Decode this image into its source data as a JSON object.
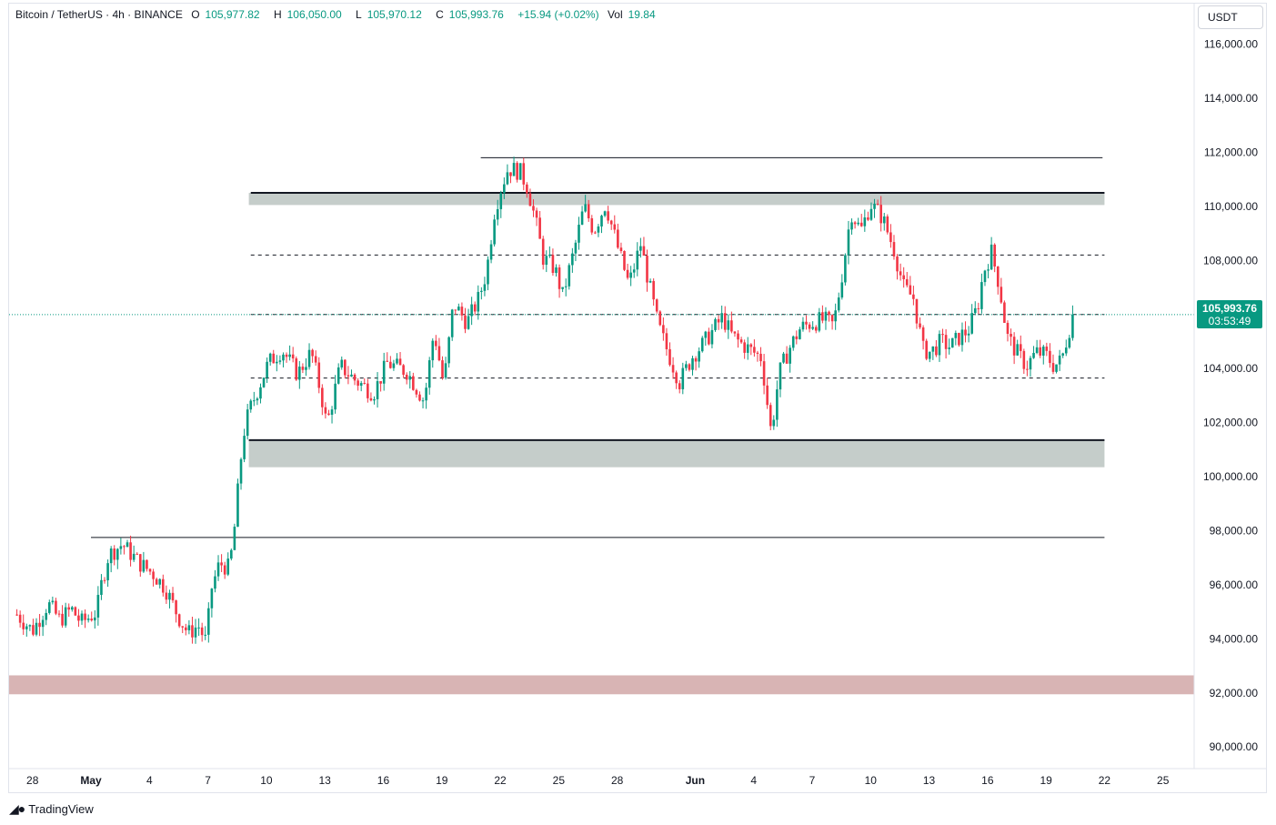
{
  "header": {
    "symbol": "Bitcoin / TetherUS · 4h · BINANCE",
    "o_label": "O",
    "o_value": "105,977.82",
    "h_label": "H",
    "h_value": "106,050.00",
    "l_label": "L",
    "l_value": "105,970.12",
    "c_label": "C",
    "c_value": "105,993.76",
    "change": "+15.94 (+0.02%)",
    "vol_label": "Vol",
    "vol_value": "19.84"
  },
  "currency": "USDT",
  "price_tag": {
    "price": "105,993.76",
    "countdown": "03:53:49"
  },
  "watermark": "TradingView",
  "colors": {
    "up": "#089981",
    "down": "#f23645",
    "zone_grey": "#c5cdca",
    "zone_red": "#d8b4b4"
  },
  "chart_data": {
    "type": "candlestick",
    "symbol": "BTCUSDT",
    "timeframe": "4h",
    "y_ticks": [
      "116,000.00",
      "114,000.00",
      "112,000.00",
      "110,000.00",
      "108,000.00",
      "106,000.00",
      "104,000.00",
      "102,000.00",
      "100,000.00",
      "98,000.00",
      "96,000.00",
      "94,000.00",
      "92,000.00",
      "90,000.00"
    ],
    "y_range": [
      89200,
      117500
    ],
    "x_ticks": [
      "28",
      "May",
      "4",
      "7",
      "10",
      "13",
      "16",
      "19",
      "22",
      "25",
      "28",
      "Jun",
      "4",
      "7",
      "10",
      "13",
      "16",
      "19",
      "22",
      "25"
    ],
    "x_tick_days": [
      -3,
      0,
      3,
      6,
      9,
      12,
      15,
      18,
      21,
      24,
      27,
      31,
      34,
      37,
      40,
      43,
      46,
      49,
      52,
      55
    ],
    "x_tick_bold": [
      "May",
      "Jun"
    ],
    "day_range": [
      -4.2,
      56.6
    ],
    "last_price": 105993.76,
    "path_points": [
      [
        -3.8,
        94900
      ],
      [
        -3.0,
        94300
      ],
      [
        -2.2,
        95300
      ],
      [
        -1.6,
        94700
      ],
      [
        -1.0,
        95100
      ],
      [
        -0.5,
        94600
      ],
      [
        0.3,
        95000
      ],
      [
        0.5,
        95900
      ],
      [
        0.9,
        97100
      ],
      [
        1.6,
        97500
      ],
      [
        2.5,
        96800
      ],
      [
        3.2,
        96400
      ],
      [
        3.8,
        95900
      ],
      [
        4.5,
        94800
      ],
      [
        5.0,
        94200
      ],
      [
        5.5,
        94500
      ],
      [
        5.9,
        93900
      ],
      [
        6.2,
        95900
      ],
      [
        6.6,
        96800
      ],
      [
        7.1,
        96600
      ],
      [
        7.35,
        98000
      ],
      [
        7.8,
        101500
      ],
      [
        8.1,
        102400
      ],
      [
        8.6,
        103300
      ],
      [
        9.1,
        104200
      ],
      [
        9.8,
        104700
      ],
      [
        10.6,
        103800
      ],
      [
        11.3,
        104600
      ],
      [
        11.8,
        103100
      ],
      [
        12.1,
        101900
      ],
      [
        12.8,
        104100
      ],
      [
        13.5,
        103600
      ],
      [
        14.5,
        103100
      ],
      [
        15.2,
        104200
      ],
      [
        16.2,
        103900
      ],
      [
        17.1,
        102800
      ],
      [
        17.6,
        105400
      ],
      [
        18.1,
        103400
      ],
      [
        18.6,
        106400
      ],
      [
        19.3,
        105700
      ],
      [
        19.9,
        106600
      ],
      [
        20.3,
        107600
      ],
      [
        20.7,
        109800
      ],
      [
        21.0,
        110600
      ],
      [
        21.4,
        111400
      ],
      [
        22.0,
        111300
      ],
      [
        22.4,
        110700
      ],
      [
        22.8,
        109500
      ],
      [
        23.2,
        108100
      ],
      [
        23.8,
        107700
      ],
      [
        24.2,
        106700
      ],
      [
        24.8,
        108400
      ],
      [
        25.3,
        110000
      ],
      [
        25.8,
        109100
      ],
      [
        26.4,
        110100
      ],
      [
        27.1,
        108300
      ],
      [
        27.6,
        107100
      ],
      [
        28.2,
        108600
      ],
      [
        28.7,
        106900
      ],
      [
        29.1,
        105600
      ],
      [
        29.6,
        104600
      ],
      [
        30.2,
        103500
      ],
      [
        30.9,
        104500
      ],
      [
        31.4,
        104900
      ],
      [
        31.9,
        105400
      ],
      [
        32.4,
        105900
      ],
      [
        32.9,
        105200
      ],
      [
        33.4,
        104900
      ],
      [
        33.8,
        104700
      ],
      [
        34.4,
        104400
      ],
      [
        34.9,
        101600
      ],
      [
        35.3,
        103800
      ],
      [
        35.8,
        104700
      ],
      [
        36.4,
        105500
      ],
      [
        37.0,
        105700
      ],
      [
        37.6,
        105800
      ],
      [
        38.1,
        105600
      ],
      [
        38.5,
        107300
      ],
      [
        39.0,
        109800
      ],
      [
        39.5,
        109100
      ],
      [
        40.0,
        110100
      ],
      [
        40.6,
        109600
      ],
      [
        41.2,
        108400
      ],
      [
        41.7,
        107000
      ],
      [
        42.2,
        106600
      ],
      [
        42.7,
        104700
      ],
      [
        43.1,
        104600
      ],
      [
        43.6,
        105000
      ],
      [
        44.1,
        104800
      ],
      [
        44.6,
        105200
      ],
      [
        45.0,
        105400
      ],
      [
        45.5,
        106300
      ],
      [
        45.8,
        107600
      ],
      [
        46.2,
        108300
      ],
      [
        46.6,
        107100
      ],
      [
        47.0,
        105200
      ],
      [
        47.5,
        104600
      ],
      [
        48.0,
        104100
      ],
      [
        48.5,
        104600
      ],
      [
        49.0,
        104500
      ],
      [
        49.4,
        104100
      ],
      [
        49.8,
        104300
      ],
      [
        50.1,
        105200
      ],
      [
        50.4,
        106000
      ]
    ],
    "levels": [
      {
        "kind": "solid-thin",
        "price": 111800,
        "from_day": 20.0,
        "to_day": 51.9
      },
      {
        "kind": "zone-grey",
        "price_low": 110050,
        "price_high": 110500,
        "from_day": 8.1,
        "to_day": 52.0
      },
      {
        "kind": "solid-thick",
        "price": 110500,
        "from_day": 8.2,
        "to_day": 52.0
      },
      {
        "kind": "dashed",
        "price": 108200,
        "from_day": 8.2,
        "to_day": 52.0
      },
      {
        "kind": "dashed",
        "price": 106000,
        "from_day": 8.2,
        "to_day": 52.0
      },
      {
        "kind": "dashed",
        "price": 103650,
        "from_day": 8.2,
        "to_day": 52.0
      },
      {
        "kind": "solid-thick",
        "price": 101350,
        "from_day": 8.1,
        "to_day": 52.0
      },
      {
        "kind": "zone-grey",
        "price_low": 100350,
        "price_high": 101350,
        "from_day": 8.1,
        "to_day": 52.0
      },
      {
        "kind": "solid-thin",
        "price": 97750,
        "from_day": 0.0,
        "to_day": 52.0
      },
      {
        "kind": "zone-red",
        "price_low": 91950,
        "price_high": 92650,
        "from_day": -4.2,
        "to_day": 56.6
      }
    ]
  }
}
